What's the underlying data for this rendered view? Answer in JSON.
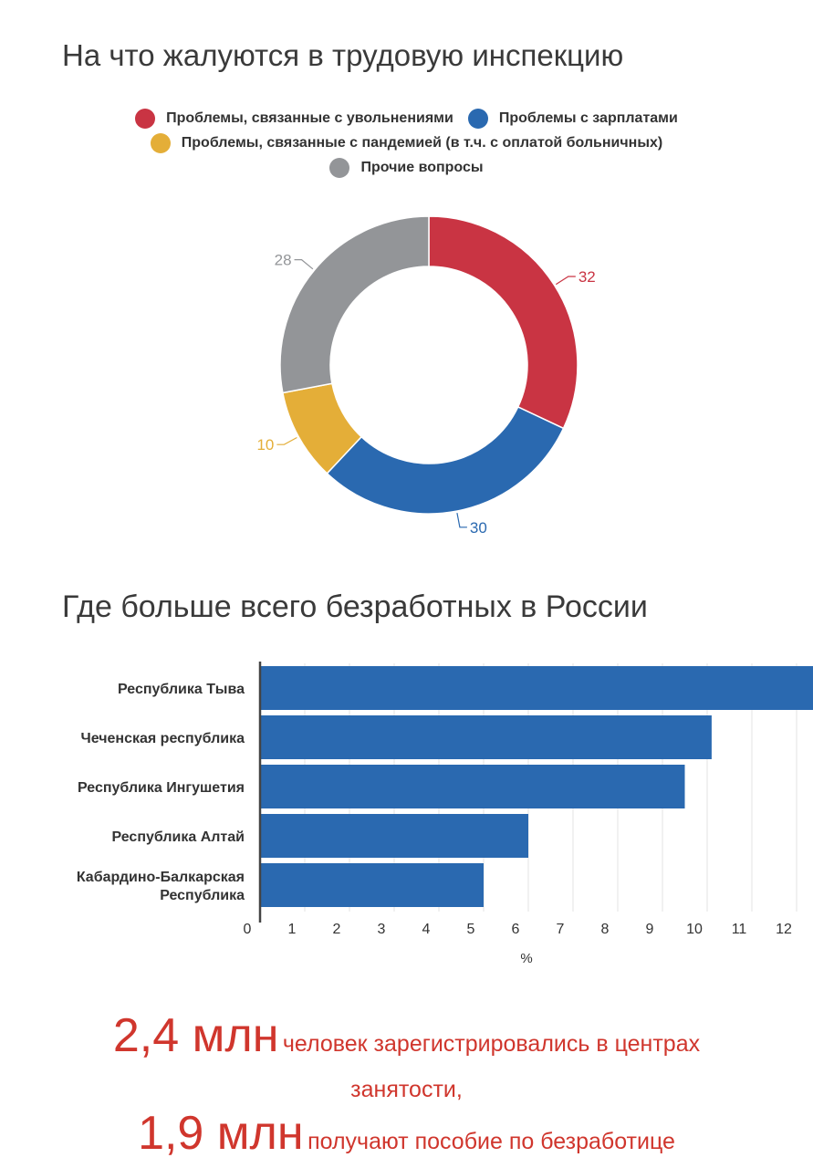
{
  "chart_data": [
    {
      "type": "pie",
      "title": "На что жалуются в трудовую инспекцию",
      "series": [
        {
          "name": "Проблемы, связанные с увольнениями",
          "value": 32,
          "color": "#c93443"
        },
        {
          "name": "Проблемы с зарплатами",
          "value": 30,
          "color": "#2a69b0"
        },
        {
          "name": "Проблемы, связанные с пандемией (в т.ч. с оплатой больничных)",
          "value": 10,
          "color": "#e4ae38"
        },
        {
          "name": "Прочие вопросы",
          "value": 28,
          "color": "#939598"
        }
      ],
      "legend_position": "top"
    },
    {
      "type": "bar",
      "orientation": "horizontal",
      "title": "Где больше всего безработных в России",
      "categories": [
        "Республика Тыва",
        "Чеченская республика",
        "Республика Ингушетия",
        "Республика Алтай",
        "Кабардино-Балкарская Республика"
      ],
      "category_lines": [
        [
          "Республика Тыва"
        ],
        [
          "Чеченская республика"
        ],
        [
          "Республика Ингушетия"
        ],
        [
          "Республика Алтай"
        ],
        [
          "Кабардино-Балкарская",
          "Республика"
        ]
      ],
      "values": [
        12.4,
        10.1,
        9.5,
        6.0,
        5.0
      ],
      "xlabel": "%",
      "xlim": [
        0,
        12
      ],
      "xticks": [
        "0",
        "1",
        "2",
        "3",
        "4",
        "5",
        "6",
        "7",
        "8",
        "9",
        "10",
        "11",
        "12"
      ],
      "grid": true,
      "color": "#2a69b0"
    }
  ],
  "footer": {
    "line1_big": "2,4 млн",
    "line1_small": "человек зарегистрировались в центрах",
    "line2_small": "занятости,",
    "line3_big": "1,9 млн",
    "line3_small": "получают пособие по безработице"
  }
}
